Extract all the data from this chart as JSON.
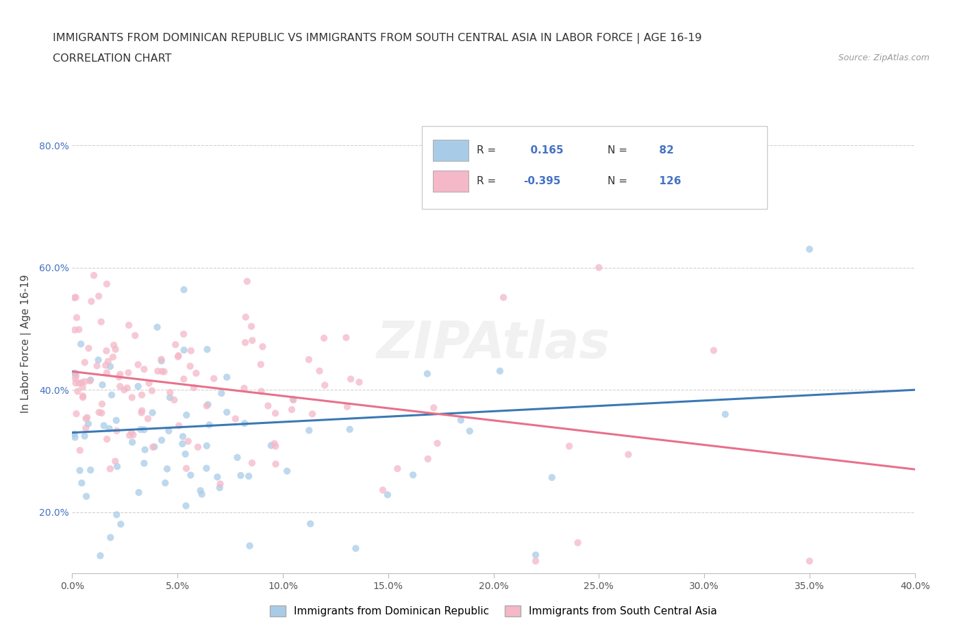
{
  "title_line1": "IMMIGRANTS FROM DOMINICAN REPUBLIC VS IMMIGRANTS FROM SOUTH CENTRAL ASIA IN LABOR FORCE | AGE 16-19",
  "title_line2": "CORRELATION CHART",
  "source": "Source: ZipAtlas.com",
  "ylabel": "In Labor Force | Age 16-19",
  "xlim": [
    0.0,
    0.4
  ],
  "ylim": [
    0.1,
    0.85
  ],
  "xticks": [
    0.0,
    0.05,
    0.1,
    0.15,
    0.2,
    0.25,
    0.3,
    0.35,
    0.4
  ],
  "yticks": [
    0.2,
    0.4,
    0.6,
    0.8
  ],
  "blue_color": "#a8cce8",
  "pink_color": "#f4b8c8",
  "blue_line_color": "#3a78b5",
  "pink_line_color": "#e8708a",
  "R_blue": 0.165,
  "N_blue": 82,
  "R_pink": -0.395,
  "N_pink": 126,
  "legend_label_blue": "Immigrants from Dominican Republic",
  "legend_label_pink": "Immigrants from South Central Asia",
  "watermark": "ZIPAtlas",
  "background_color": "#ffffff",
  "grid_color": "#d0d0d0",
  "blue_intercept": 0.33,
  "blue_slope": 0.175,
  "pink_intercept": 0.43,
  "pink_slope": -0.4
}
